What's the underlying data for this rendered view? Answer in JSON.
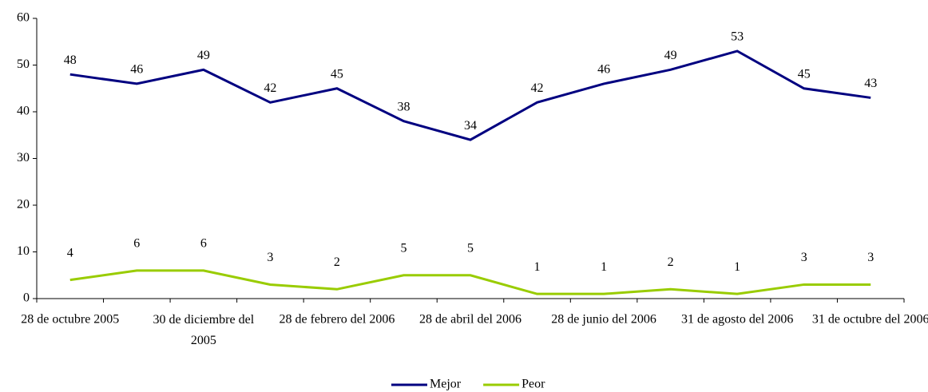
{
  "chart_data": {
    "type": "line",
    "categories": [
      "28 de octubre 2005",
      null,
      "30 de diciembre del 2005",
      null,
      "28 de febrero del 2006",
      null,
      "28 de abril del 2006",
      null,
      "28 de junio del 2006",
      null,
      "31 de agosto del 2006",
      null,
      "31 de octubre del 2006"
    ],
    "series": [
      {
        "name": "Mejor",
        "color": "#000080",
        "values": [
          48,
          46,
          49,
          42,
          45,
          38,
          34,
          42,
          46,
          49,
          53,
          45,
          43
        ]
      },
      {
        "name": "Peor",
        "color": "#99cc00",
        "values": [
          4,
          6,
          6,
          3,
          2,
          5,
          5,
          1,
          1,
          2,
          1,
          3,
          3
        ]
      }
    ],
    "ylim": [
      0,
      60
    ],
    "yticks": [
      0,
      10,
      20,
      30,
      40,
      50,
      60
    ],
    "grid": false,
    "legend": "bottom"
  }
}
